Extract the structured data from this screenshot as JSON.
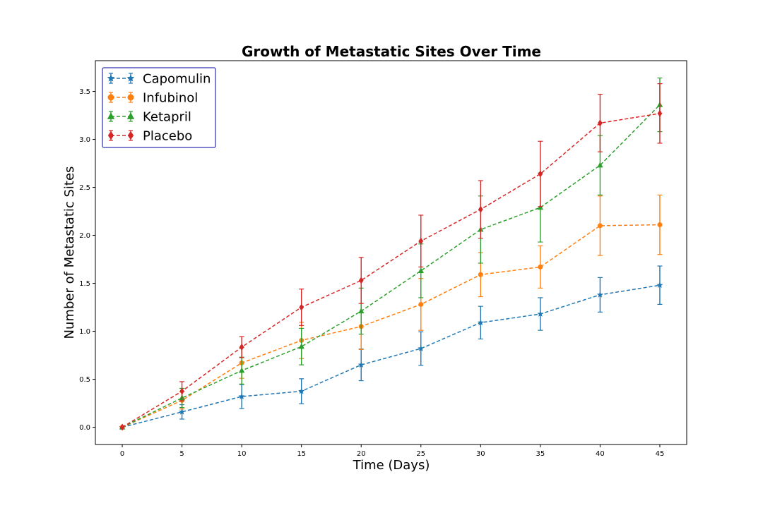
{
  "chart_data": {
    "type": "line",
    "title": "Growth of Metastatic Sites Over Time",
    "xlabel": "Time (Days)",
    "ylabel": "Number of Metastatic Sites",
    "x": [
      0,
      5,
      10,
      15,
      20,
      25,
      30,
      35,
      40,
      45
    ],
    "xticks": [
      "0",
      "5",
      "10",
      "15",
      "20",
      "25",
      "30",
      "35",
      "40",
      "45"
    ],
    "yticks": [
      "0.0",
      "0.5",
      "1.0",
      "1.5",
      "2.0",
      "2.5",
      "3.0",
      "3.5"
    ],
    "xlim": [
      -2.25,
      47.25
    ],
    "ylim": [
      -0.18,
      3.82
    ],
    "grid": false,
    "legend_position": "top-left",
    "series": [
      {
        "name": "Capomulin",
        "color": "#1f77b4",
        "marker": "star",
        "values": [
          0.0,
          0.16,
          0.32,
          0.375,
          0.65,
          0.82,
          1.09,
          1.18,
          1.38,
          1.48
        ],
        "errors": [
          0.0,
          0.075,
          0.125,
          0.13,
          0.165,
          0.175,
          0.17,
          0.17,
          0.18,
          0.2
        ]
      },
      {
        "name": "Infubinol",
        "color": "#ff7f0e",
        "marker": "circle",
        "values": [
          0.0,
          0.28,
          0.67,
          0.905,
          1.05,
          1.28,
          1.59,
          1.67,
          2.1,
          2.11
        ],
        "errors": [
          0.0,
          0.09,
          0.16,
          0.19,
          0.24,
          0.27,
          0.23,
          0.22,
          0.31,
          0.31
        ]
      },
      {
        "name": "Ketapril",
        "color": "#2ca02c",
        "marker": "triangle",
        "values": [
          0.0,
          0.305,
          0.59,
          0.84,
          1.21,
          1.63,
          2.06,
          2.29,
          2.73,
          3.36
        ],
        "errors": [
          0.0,
          0.1,
          0.14,
          0.19,
          0.24,
          0.28,
          0.35,
          0.36,
          0.31,
          0.28
        ]
      },
      {
        "name": "Placebo",
        "color": "#d62728",
        "marker": "diamond",
        "values": [
          0.0,
          0.375,
          0.835,
          1.25,
          1.53,
          1.94,
          2.27,
          2.64,
          3.17,
          3.27
        ],
        "errors": [
          0.0,
          0.1,
          0.11,
          0.19,
          0.24,
          0.27,
          0.3,
          0.34,
          0.3,
          0.31
        ]
      }
    ]
  }
}
